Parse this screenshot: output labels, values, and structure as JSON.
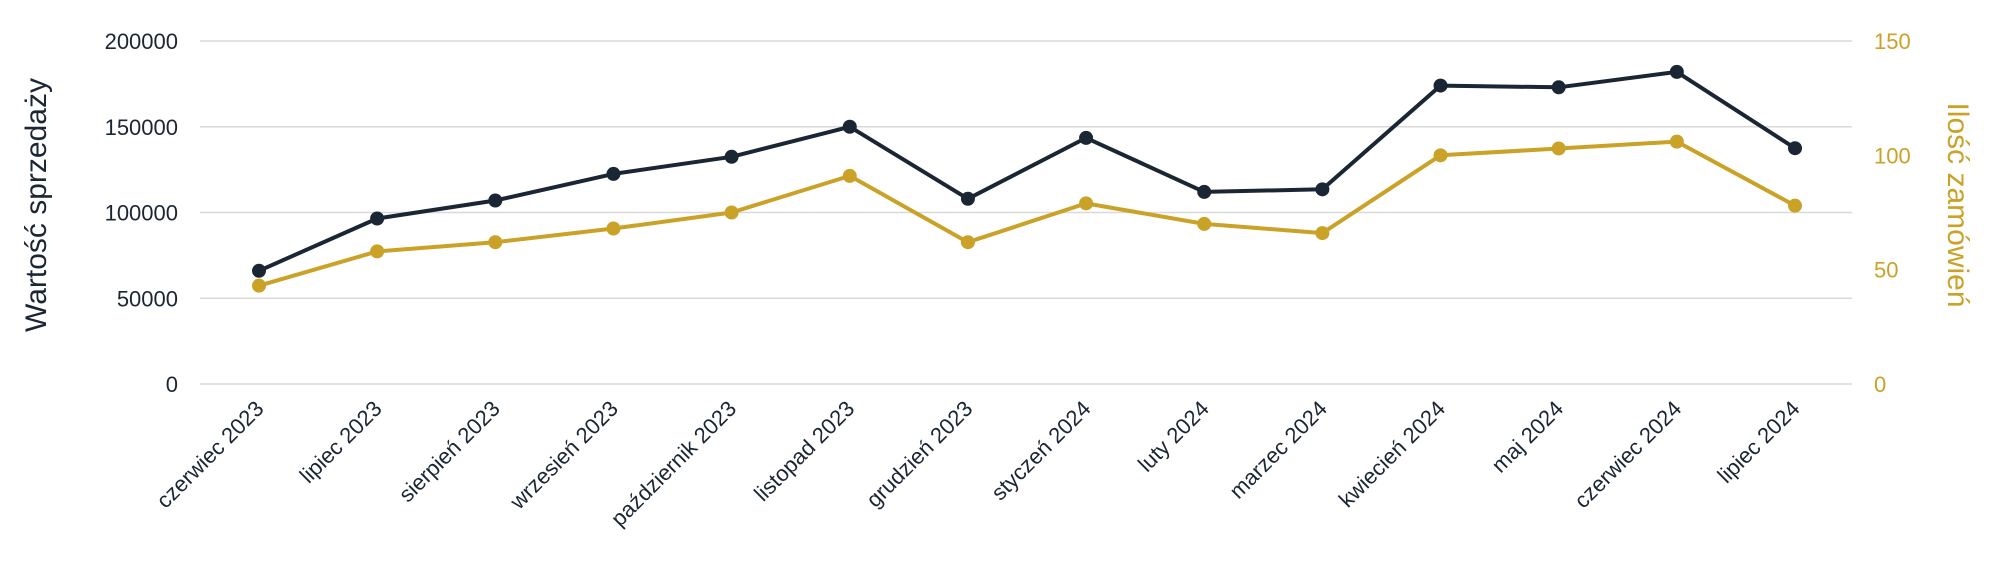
{
  "chart_data": {
    "type": "line",
    "categories": [
      "czerwiec 2023",
      "lipiec 2023",
      "sierpień 2023",
      "wrzesień 2023",
      "październik 2023",
      "listopad 2023",
      "grudzień 2023",
      "styczeń 2024",
      "luty 2024",
      "marzec 2024",
      "kwiecień 2024",
      "maj 2024",
      "czerwiec 2024",
      "lipiec 2024"
    ],
    "series": [
      {
        "name": "Wartość sprzedaży",
        "axis": "left",
        "color": "#1b2634",
        "values": [
          66000,
          96500,
          107000,
          122500,
          132500,
          150000,
          108000,
          143500,
          112000,
          113500,
          174000,
          173000,
          182000,
          137500
        ]
      },
      {
        "name": "Ilość zamówień",
        "axis": "right",
        "color": "#c9a227",
        "values": [
          43,
          58,
          62,
          68,
          75,
          91,
          62,
          79,
          70,
          66,
          100,
          103,
          106,
          78
        ]
      }
    ],
    "ylabel_left": "Wartość sprzedaży",
    "ylabel_right": "Ilość zamówień",
    "ylim_left": [
      0,
      200000
    ],
    "ylim_right": [
      0,
      150
    ],
    "yticks_left": [
      "0",
      "50000",
      "100000",
      "150000",
      "200000"
    ],
    "yticks_right": [
      "0",
      "50",
      "100",
      "150"
    ],
    "grid": true
  }
}
